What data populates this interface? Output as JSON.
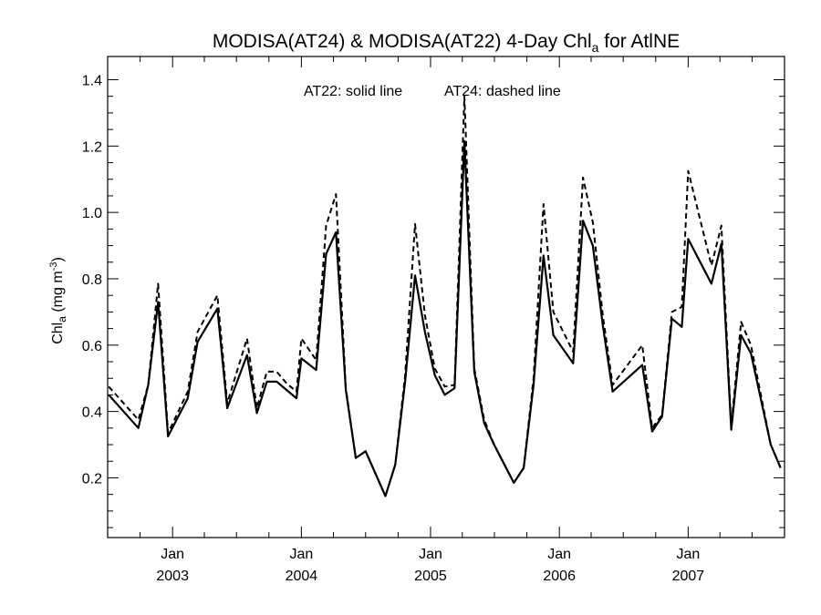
{
  "chart_data": {
    "type": "line",
    "title": "MODISA(AT24) & MODISA(AT22) 4-Day Chl",
    "title_sub": "a",
    "title_suffix": " for AtlNE",
    "ylabel": "Chl",
    "ylabel_sub": "a",
    "ylabel_unit": " (mg m",
    "ylabel_unit_sup": "-3",
    "ylabel_unit_close": ")",
    "annotation_solid": "AT22: solid line",
    "annotation_dashed": "AT24: dashed line",
    "xlim": [
      "2002-07-01",
      "2007-10-01"
    ],
    "ylim": [
      0.02,
      1.47
    ],
    "yticks": [
      "0.2",
      "0.4",
      "0.6",
      "0.8",
      "1.0",
      "1.2",
      "1.4"
    ],
    "xticks": [
      {
        "date": "2003-01-01",
        "month": "Jan",
        "year": "2003"
      },
      {
        "date": "2004-01-01",
        "month": "Jan",
        "year": "2004"
      },
      {
        "date": "2005-01-01",
        "month": "Jan",
        "year": "2005"
      },
      {
        "date": "2006-01-01",
        "month": "Jan",
        "year": "2006"
      },
      {
        "date": "2007-01-01",
        "month": "Jan",
        "year": "2007"
      }
    ],
    "grid": false,
    "series": [
      {
        "name": "AT22",
        "style": "solid",
        "color": "#000000",
        "points": [
          [
            "2002-07-04",
            0.45
          ],
          [
            "2002-09-26",
            0.35
          ],
          [
            "2002-10-24",
            0.48
          ],
          [
            "2002-11-21",
            0.73
          ],
          [
            "2002-12-19",
            0.325
          ],
          [
            "2003-02-13",
            0.44
          ],
          [
            "2003-03-13",
            0.61
          ],
          [
            "2003-05-08",
            0.71
          ],
          [
            "2003-06-05",
            0.41
          ],
          [
            "2003-07-31",
            0.57
          ],
          [
            "2003-08-28",
            0.395
          ],
          [
            "2003-09-25",
            0.49
          ],
          [
            "2003-10-23",
            0.49
          ],
          [
            "2003-11-20",
            0.465
          ],
          [
            "2003-12-18",
            0.44
          ],
          [
            "2004-01-01",
            0.56
          ],
          [
            "2004-02-12",
            0.525
          ],
          [
            "2004-03-11",
            0.875
          ],
          [
            "2004-04-08",
            0.94
          ],
          [
            "2004-05-06",
            0.465
          ],
          [
            "2004-06-03",
            0.26
          ],
          [
            "2004-07-01",
            0.28
          ],
          [
            "2004-08-26",
            0.145
          ],
          [
            "2004-09-23",
            0.24
          ],
          [
            "2004-10-21",
            0.49
          ],
          [
            "2004-11-18",
            0.81
          ],
          [
            "2004-12-16",
            0.64
          ],
          [
            "2005-01-13",
            0.51
          ],
          [
            "2005-02-10",
            0.45
          ],
          [
            "2005-03-10",
            0.47
          ],
          [
            "2005-04-07",
            1.215
          ],
          [
            "2005-05-05",
            0.52
          ],
          [
            "2005-06-02",
            0.365
          ],
          [
            "2005-06-30",
            0.3
          ],
          [
            "2005-08-25",
            0.185
          ],
          [
            "2005-09-22",
            0.23
          ],
          [
            "2005-10-20",
            0.48
          ],
          [
            "2005-11-17",
            0.87
          ],
          [
            "2005-12-15",
            0.63
          ],
          [
            "2006-02-09",
            0.545
          ],
          [
            "2006-03-09",
            0.975
          ],
          [
            "2006-04-06",
            0.9
          ],
          [
            "2006-05-04",
            0.66
          ],
          [
            "2006-06-01",
            0.46
          ],
          [
            "2006-08-24",
            0.54
          ],
          [
            "2006-09-21",
            0.34
          ],
          [
            "2006-10-19",
            0.385
          ],
          [
            "2006-11-16",
            0.68
          ],
          [
            "2006-12-14",
            0.655
          ],
          [
            "2007-01-01",
            0.92
          ],
          [
            "2007-03-08",
            0.785
          ],
          [
            "2007-04-05",
            0.905
          ],
          [
            "2007-05-03",
            0.345
          ],
          [
            "2007-05-31",
            0.63
          ],
          [
            "2007-06-28",
            0.575
          ],
          [
            "2007-08-23",
            0.3
          ],
          [
            "2007-09-20",
            0.23
          ]
        ]
      },
      {
        "name": "AT24",
        "style": "dashed",
        "color": "#000000",
        "points": [
          [
            "2002-07-04",
            0.475
          ],
          [
            "2002-09-26",
            0.375
          ],
          [
            "2002-10-24",
            0.48
          ],
          [
            "2002-11-21",
            0.785
          ],
          [
            "2002-12-19",
            0.335
          ],
          [
            "2003-02-13",
            0.46
          ],
          [
            "2003-03-13",
            0.64
          ],
          [
            "2003-05-08",
            0.75
          ],
          [
            "2003-06-05",
            0.425
          ],
          [
            "2003-07-31",
            0.62
          ],
          [
            "2003-08-28",
            0.41
          ],
          [
            "2003-09-25",
            0.52
          ],
          [
            "2003-10-23",
            0.52
          ],
          [
            "2003-11-20",
            0.485
          ],
          [
            "2003-12-18",
            0.46
          ],
          [
            "2004-01-01",
            0.62
          ],
          [
            "2004-02-12",
            0.555
          ],
          [
            "2004-03-11",
            0.96
          ],
          [
            "2004-04-08",
            1.055
          ],
          [
            "2004-05-06",
            0.47
          ],
          [
            "2004-06-03",
            0.26
          ],
          [
            "2004-07-01",
            0.28
          ],
          [
            "2004-08-26",
            0.145
          ],
          [
            "2004-09-23",
            0.24
          ],
          [
            "2004-10-21",
            0.51
          ],
          [
            "2004-11-18",
            0.965
          ],
          [
            "2004-12-16",
            0.69
          ],
          [
            "2005-01-13",
            0.53
          ],
          [
            "2005-02-10",
            0.475
          ],
          [
            "2005-03-10",
            0.48
          ],
          [
            "2005-04-07",
            1.35
          ],
          [
            "2005-05-05",
            0.53
          ],
          [
            "2005-06-02",
            0.375
          ],
          [
            "2005-06-30",
            0.3
          ],
          [
            "2005-08-25",
            0.185
          ],
          [
            "2005-09-22",
            0.23
          ],
          [
            "2005-10-20",
            0.5
          ],
          [
            "2005-11-17",
            1.025
          ],
          [
            "2005-12-15",
            0.7
          ],
          [
            "2006-02-09",
            0.58
          ],
          [
            "2006-03-09",
            1.105
          ],
          [
            "2006-04-06",
            0.97
          ],
          [
            "2006-05-04",
            0.69
          ],
          [
            "2006-06-01",
            0.48
          ],
          [
            "2006-08-24",
            0.6
          ],
          [
            "2006-09-21",
            0.35
          ],
          [
            "2006-10-19",
            0.39
          ],
          [
            "2006-11-16",
            0.7
          ],
          [
            "2006-12-14",
            0.715
          ],
          [
            "2007-01-01",
            1.125
          ],
          [
            "2007-03-08",
            0.84
          ],
          [
            "2007-04-05",
            0.96
          ],
          [
            "2007-05-03",
            0.355
          ],
          [
            "2007-05-31",
            0.67
          ],
          [
            "2007-06-28",
            0.6
          ],
          [
            "2007-08-23",
            0.3
          ],
          [
            "2007-09-20",
            0.23
          ]
        ]
      }
    ]
  }
}
